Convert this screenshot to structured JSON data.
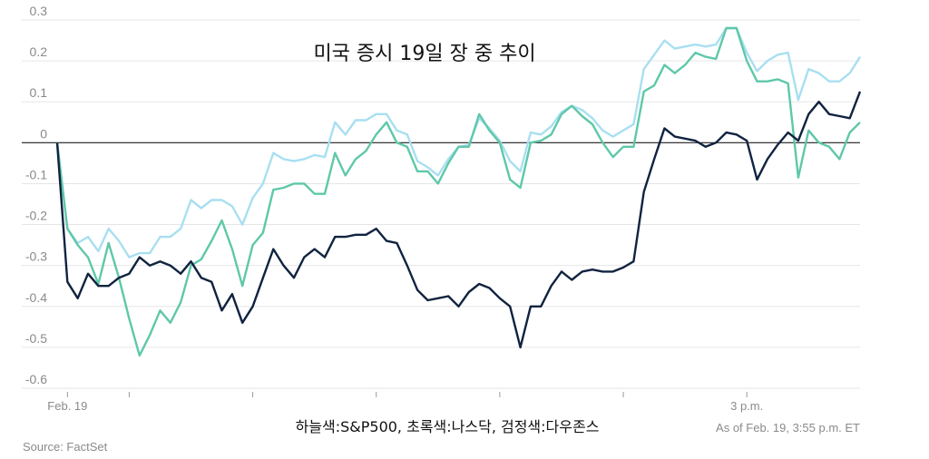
{
  "chart_data": {
    "type": "line",
    "title": "미국 증시 19일 장 중 추이",
    "legend_text": "하늘색:S&P500, 초록색:나스닥, 검정색:다우존스",
    "as_of": "As of Feb. 19, 3:55 p.m. ET",
    "source": "Source: FactSet",
    "ylim": [
      -0.6,
      0.3
    ],
    "yticks": [
      0.3,
      0.2,
      0.1,
      0,
      -0.1,
      -0.2,
      -0.3,
      -0.4,
      -0.5,
      -0.6
    ],
    "ytick_labels": [
      "0.3",
      "0.2",
      "0.1",
      "0",
      "-0.1",
      "-0.2",
      "-0.3",
      "-0.4",
      "-0.5",
      "-0.6"
    ],
    "grid": true,
    "xtick_times": [
      "9:30",
      "10:00",
      "11:00",
      "12:00",
      "13:00",
      "14:00",
      "15:00"
    ],
    "xtick_labels": {
      "9:30": "Feb. 19",
      "15:00": "3 p.m."
    },
    "x": [
      "9:25",
      "9:30",
      "9:35",
      "9:40",
      "9:45",
      "9:50",
      "9:55",
      "10:00",
      "10:05",
      "10:10",
      "10:15",
      "10:20",
      "10:25",
      "10:30",
      "10:35",
      "10:40",
      "10:45",
      "10:50",
      "10:55",
      "11:00",
      "11:05",
      "11:10",
      "11:15",
      "11:20",
      "11:25",
      "11:30",
      "11:35",
      "11:40",
      "11:45",
      "11:50",
      "11:55",
      "12:00",
      "12:05",
      "12:10",
      "12:15",
      "12:20",
      "12:25",
      "12:30",
      "12:35",
      "12:40",
      "12:45",
      "12:50",
      "12:55",
      "13:00",
      "13:05",
      "13:10",
      "13:15",
      "13:20",
      "13:25",
      "13:30",
      "13:35",
      "13:40",
      "13:45",
      "13:50",
      "13:55",
      "14:00",
      "14:05",
      "14:10",
      "14:15",
      "14:20",
      "14:25",
      "14:30",
      "14:35",
      "14:40",
      "14:45",
      "14:50",
      "14:55",
      "15:00",
      "15:05",
      "15:10",
      "15:15",
      "15:20",
      "15:25",
      "15:30",
      "15:35",
      "15:40",
      "15:45",
      "15:50",
      "15:55"
    ],
    "series": [
      {
        "key": "sp500",
        "color": "#a8dff1",
        "values": [
          0,
          -0.21,
          -0.245,
          -0.23,
          -0.265,
          -0.21,
          -0.24,
          -0.28,
          -0.27,
          -0.27,
          -0.23,
          -0.23,
          -0.21,
          -0.14,
          -0.16,
          -0.14,
          -0.14,
          -0.155,
          -0.2,
          -0.135,
          -0.1,
          -0.025,
          -0.04,
          -0.045,
          -0.04,
          -0.03,
          -0.035,
          0.05,
          0.02,
          0.055,
          0.055,
          0.07,
          0.07,
          0.03,
          0.02,
          -0.045,
          -0.06,
          -0.08,
          -0.04,
          -0.01,
          -0.005,
          0.06,
          0.035,
          0.005,
          -0.045,
          -0.07,
          0.025,
          0.02,
          0.04,
          0.075,
          0.09,
          0.08,
          0.06,
          0.03,
          0.015,
          0.03,
          0.045,
          0.18,
          0.215,
          0.25,
          0.23,
          0.235,
          0.24,
          0.235,
          0.24,
          0.28,
          0.28,
          0.22,
          0.175,
          0.2,
          0.215,
          0.22,
          0.105,
          0.18,
          0.17,
          0.15,
          0.15,
          0.17,
          0.21
        ]
      },
      {
        "key": "nasdaq",
        "color": "#5ec8a9",
        "values": [
          0,
          -0.21,
          -0.25,
          -0.28,
          -0.345,
          -0.245,
          -0.33,
          -0.43,
          -0.52,
          -0.47,
          -0.41,
          -0.44,
          -0.39,
          -0.3,
          -0.285,
          -0.24,
          -0.19,
          -0.26,
          -0.35,
          -0.25,
          -0.22,
          -0.115,
          -0.11,
          -0.1,
          -0.1,
          -0.125,
          -0.125,
          -0.025,
          -0.08,
          -0.04,
          -0.02,
          0.02,
          0.05,
          0,
          -0.01,
          -0.07,
          -0.07,
          -0.1,
          -0.05,
          -0.01,
          -0.01,
          0.07,
          0.03,
          0,
          -0.09,
          -0.11,
          0,
          0.005,
          0.02,
          0.07,
          0.09,
          0.065,
          0.045,
          0,
          -0.035,
          -0.01,
          -0.01,
          0.125,
          0.14,
          0.19,
          0.17,
          0.19,
          0.22,
          0.21,
          0.205,
          0.28,
          0.28,
          0.2,
          0.15,
          0.15,
          0.155,
          0.145,
          -0.085,
          0.03,
          0,
          -0.01,
          -0.04,
          0.025,
          0.05
        ]
      },
      {
        "key": "dow",
        "color": "#10233f",
        "values": [
          0,
          -0.34,
          -0.38,
          -0.32,
          -0.35,
          -0.35,
          -0.33,
          -0.32,
          -0.28,
          -0.3,
          -0.29,
          -0.3,
          -0.32,
          -0.29,
          -0.33,
          -0.34,
          -0.41,
          -0.37,
          -0.44,
          -0.4,
          -0.33,
          -0.26,
          -0.3,
          -0.33,
          -0.28,
          -0.26,
          -0.28,
          -0.23,
          -0.23,
          -0.225,
          -0.225,
          -0.21,
          -0.24,
          -0.245,
          -0.3,
          -0.36,
          -0.385,
          -0.38,
          -0.375,
          -0.4,
          -0.365,
          -0.345,
          -0.355,
          -0.38,
          -0.4,
          -0.5,
          -0.4,
          -0.4,
          -0.35,
          -0.315,
          -0.335,
          -0.315,
          -0.31,
          -0.315,
          -0.315,
          -0.305,
          -0.29,
          -0.12,
          -0.04,
          0.035,
          0.015,
          0.01,
          0.005,
          -0.01,
          0,
          0.025,
          0.02,
          0.005,
          -0.09,
          -0.04,
          -0.005,
          0.025,
          0.005,
          0.07,
          0.1,
          0.07,
          0.065,
          0.06,
          0.125
        ]
      }
    ]
  }
}
